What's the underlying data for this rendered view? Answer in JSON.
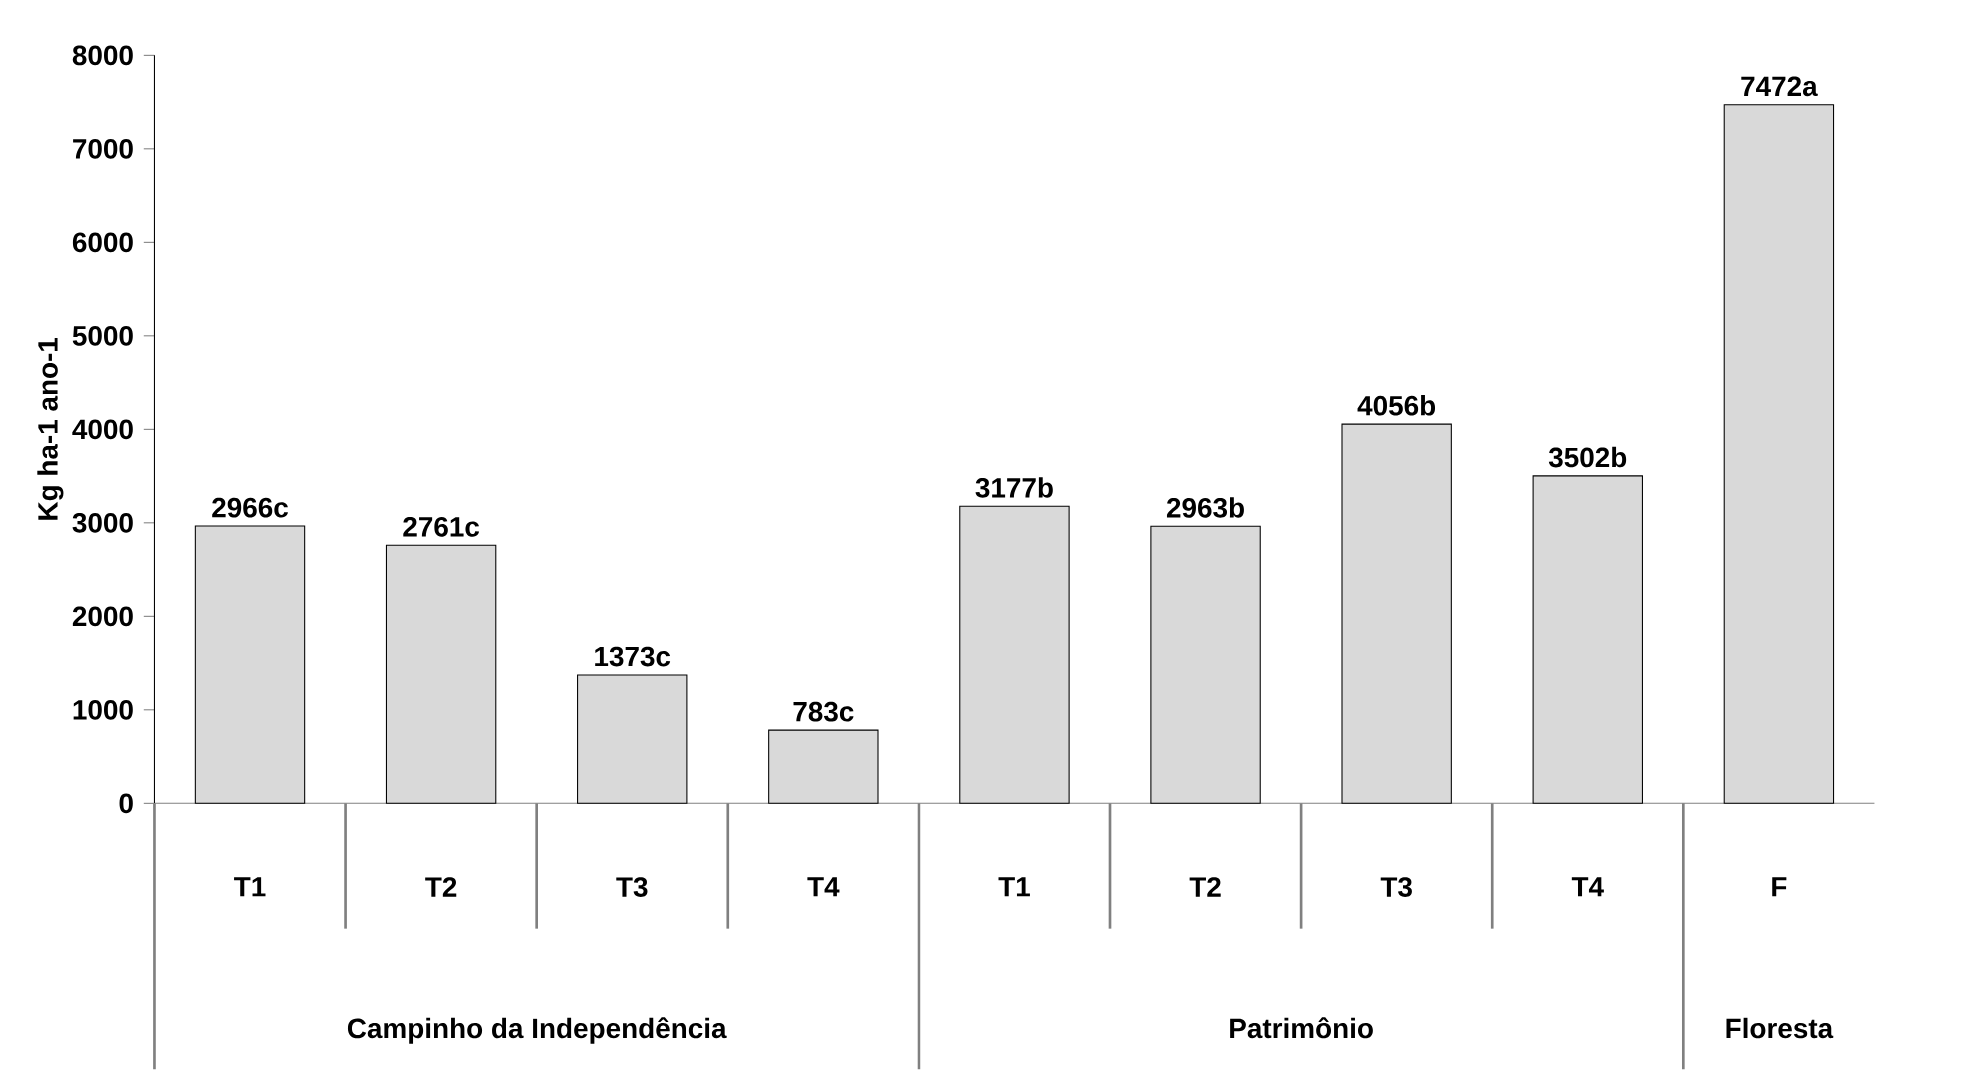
{
  "chart_data": {
    "type": "bar",
    "ylabel": "Kg ha-1 ano-1",
    "categories": [
      "T1",
      "T2",
      "T3",
      "T4",
      "T1",
      "T2",
      "T3",
      "T4",
      "F"
    ],
    "values": [
      2966,
      2761,
      1373,
      783,
      3177,
      2963,
      4056,
      3502,
      7472
    ],
    "value_labels": [
      "2966c",
      "2761c",
      "1373c",
      "783c",
      "3177b",
      "2963b",
      "4056b",
      "3502b",
      "7472a"
    ],
    "color": "#d9d9d9",
    "ylim": [
      0,
      8000
    ],
    "yticks": [
      0,
      1000,
      2000,
      3000,
      4000,
      5000,
      6000,
      7000,
      8000
    ],
    "annotations": [
      "Campinho da Independência",
      "Patrimônio",
      "Floresta"
    ]
  }
}
